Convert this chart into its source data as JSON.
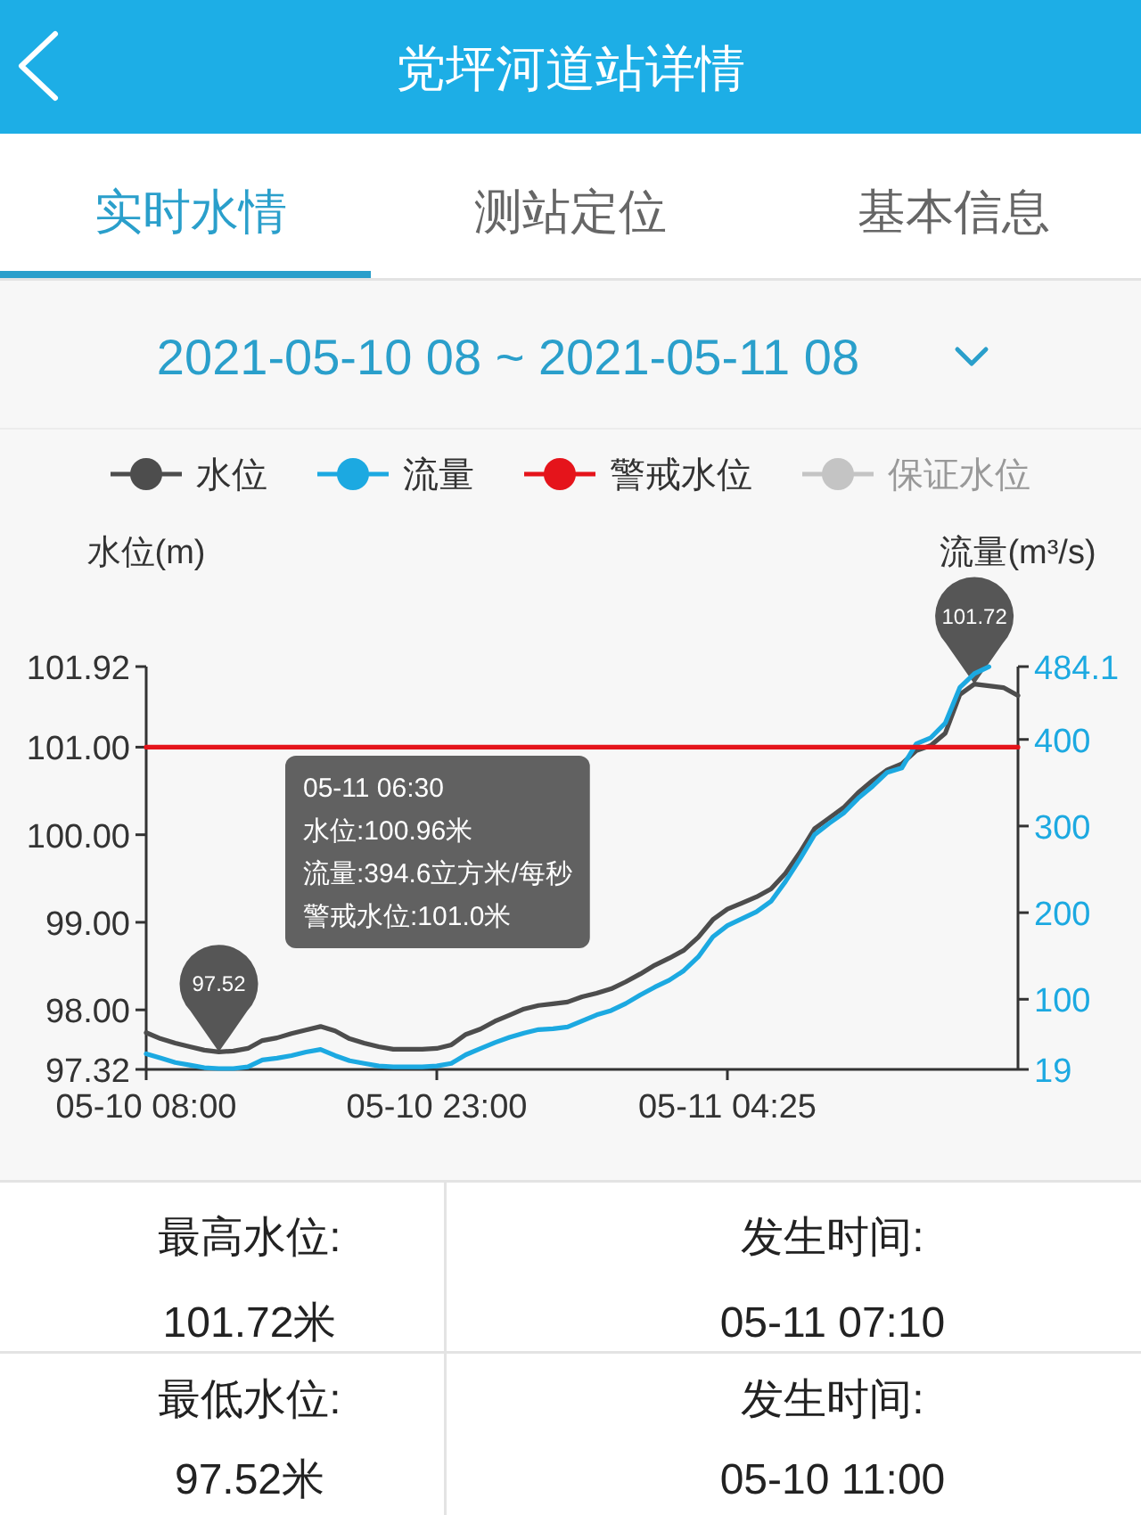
{
  "chart_data": {
    "type": "line",
    "title": "党坪河道站详情",
    "subtitle": "2021-05-10 08 ~ 2021-05-11 08",
    "ylabel": "水位(m)",
    "y2label": "流量(m³/s)",
    "categories": [
      "05-10 08:00",
      null,
      null,
      null,
      null,
      null,
      null,
      null,
      null,
      null,
      null,
      null,
      null,
      null,
      null,
      null,
      null,
      null,
      null,
      null,
      "05-10 23:00",
      null,
      null,
      null,
      null,
      null,
      null,
      null,
      null,
      null,
      null,
      null,
      null,
      null,
      null,
      null,
      null,
      null,
      null,
      null,
      "05-11 04:25",
      null,
      null,
      null,
      null,
      null,
      null,
      null,
      null,
      null,
      null,
      null,
      null,
      null,
      null,
      null,
      null,
      null,
      null,
      null,
      null
    ],
    "series": [
      {
        "name": "水位",
        "color": "#4d4d4d",
        "values": [
          97.74,
          97.67,
          97.62,
          97.58,
          97.54,
          97.52,
          97.53,
          97.56,
          97.65,
          97.68,
          97.73,
          97.77,
          97.81,
          97.76,
          97.67,
          97.62,
          97.58,
          97.55,
          97.55,
          97.55,
          97.56,
          97.6,
          97.72,
          97.78,
          97.87,
          97.94,
          98.01,
          98.05,
          98.07,
          98.09,
          98.15,
          98.19,
          98.24,
          98.32,
          98.41,
          98.51,
          98.59,
          98.68,
          98.83,
          99.03,
          99.15,
          99.22,
          99.29,
          99.38,
          99.56,
          99.8,
          100.07,
          100.19,
          100.31,
          100.48,
          100.62,
          100.74,
          100.81,
          100.96,
          101.02,
          101.16,
          101.6,
          101.72,
          101.7,
          101.68,
          101.59
        ],
        "value_labels": [
          null,
          null,
          null,
          null,
          null,
          "97.52",
          null,
          null,
          null,
          null,
          null,
          null,
          null,
          null,
          null,
          null,
          null,
          null,
          null,
          null,
          null,
          null,
          null,
          null,
          null,
          null,
          null,
          null,
          null,
          null,
          null,
          null,
          null,
          null,
          null,
          null,
          null,
          null,
          null,
          null,
          null,
          null,
          null,
          null,
          null,
          null,
          null,
          null,
          null,
          null,
          null,
          null,
          null,
          null,
          null,
          null,
          null,
          "101.72",
          null,
          null,
          null
        ]
      },
      {
        "name": "流量",
        "color": "#1ca9e1",
        "axis": "y2",
        "values": [
          37,
          32,
          27,
          24,
          21,
          20,
          20,
          22,
          30,
          32,
          35,
          39,
          42,
          35,
          29,
          26,
          23,
          22,
          22,
          22,
          23,
          26,
          36,
          43,
          50,
          56,
          61,
          65,
          66,
          68,
          75,
          82,
          87,
          95,
          105,
          114,
          122,
          133,
          149,
          172,
          185,
          193,
          201,
          213,
          236,
          262,
          290,
          303,
          315,
          332,
          346,
          362,
          367,
          395,
          402,
          419,
          460,
          476,
          484,
          null,
          null
        ]
      },
      {
        "name": "警戒水位",
        "color": "#e5141b",
        "values": [
          101.0,
          101.0,
          101.0,
          101.0,
          101.0,
          101.0,
          101.0,
          101.0,
          101.0,
          101.0,
          101.0,
          101.0,
          101.0,
          101.0,
          101.0,
          101.0,
          101.0,
          101.0,
          101.0,
          101.0,
          101.0,
          101.0,
          101.0,
          101.0,
          101.0,
          101.0,
          101.0,
          101.0,
          101.0,
          101.0,
          101.0,
          101.0,
          101.0,
          101.0,
          101.0,
          101.0,
          101.0,
          101.0,
          101.0,
          101.0,
          101.0,
          101.0,
          101.0,
          101.0,
          101.0,
          101.0,
          101.0,
          101.0,
          101.0,
          101.0,
          101.0,
          101.0,
          101.0,
          101.0,
          101.0,
          101.0,
          101.0,
          101.0,
          101.0,
          101.0,
          101.0
        ]
      },
      {
        "name": "保证水位",
        "color": "#c4c4c4",
        "values": [
          null,
          null,
          null,
          null,
          null,
          null,
          null,
          null,
          null,
          null,
          null,
          null,
          null,
          null,
          null,
          null,
          null,
          null,
          null,
          null,
          null,
          null,
          null,
          null,
          null,
          null,
          null,
          null,
          null,
          null,
          null,
          null,
          null,
          null,
          null,
          null,
          null,
          null,
          null,
          null,
          null,
          null,
          null,
          null,
          null,
          null,
          null,
          null,
          null,
          null,
          null,
          null,
          null,
          null,
          null,
          null,
          null,
          null,
          null,
          null,
          null
        ]
      }
    ],
    "ylim": [
      97.32,
      101.92
    ],
    "yticks": [
      97.32,
      {
        "value": 98,
        "label": "98.00"
      },
      {
        "value": 99,
        "label": "99.00"
      },
      {
        "value": 100,
        "label": "100.00"
      },
      {
        "value": 101,
        "label": "101.00"
      },
      101.92
    ],
    "y2lim": [
      19,
      484.1
    ],
    "y2ticks": [
      19,
      100,
      200,
      300,
      400,
      484.1
    ],
    "legend": "top",
    "annotations": [
      "实时水情",
      "测站定位",
      "基本信息",
      "05-11 06:30",
      "水位:100.96米",
      "流量:394.6立方米/每秒",
      "警戒水位:101.0米",
      "最高水位:",
      "101.72米",
      "发生时间:",
      "05-11 07:10",
      "最低水位:",
      "97.52米",
      "发生时间:",
      "05-10 11:00"
    ]
  }
}
